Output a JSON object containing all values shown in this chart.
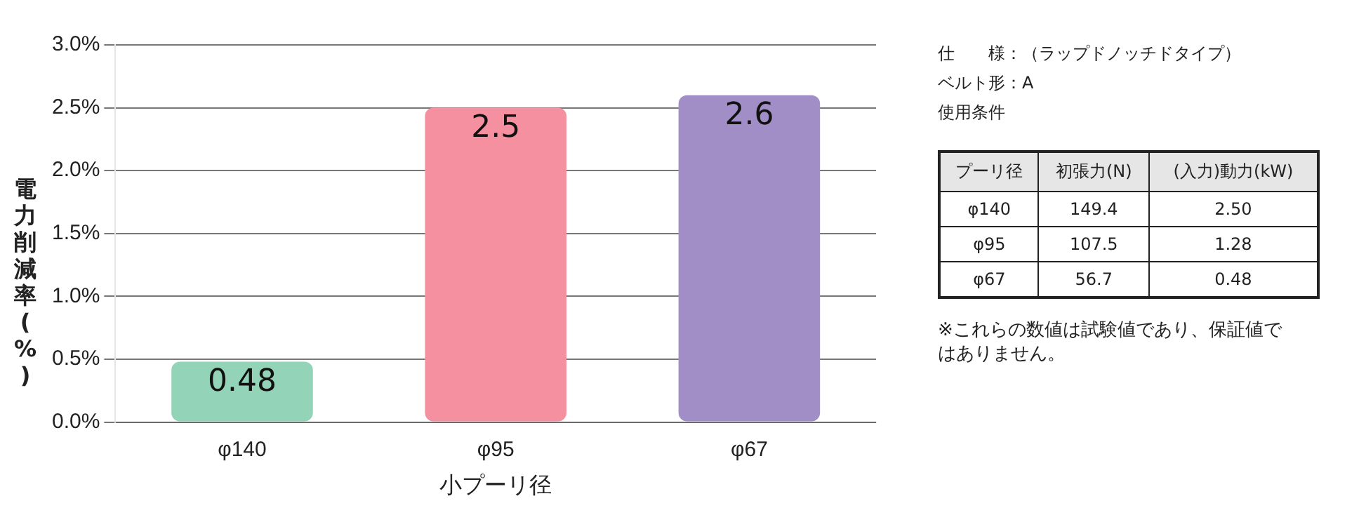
{
  "chart_data": [
    {
      "type": "bar",
      "categories": [
        "φ140",
        "φ95",
        "φ67"
      ],
      "values": [
        0.48,
        2.5,
        2.6
      ],
      "colors": [
        "#93d3b7",
        "#f4909f",
        "#a28ec6"
      ],
      "xlabel": "小プーリ径",
      "ylabel": "電力削減率(%)",
      "ylim": [
        0,
        3
      ],
      "yticks": [
        {
          "value": 0,
          "label": "0.0%"
        },
        {
          "value": 0.5,
          "label": "0.5%"
        },
        {
          "value": 1,
          "label": "1.0%"
        },
        {
          "value": 1.5,
          "label": "1.5%"
        },
        {
          "value": 2,
          "label": "2.0%"
        },
        {
          "value": 2.5,
          "label": "2.5%"
        },
        {
          "value": 3,
          "label": "3.0%"
        }
      ],
      "grid": "y",
      "data_labels": true
    },
    {
      "type": "other",
      "annotations": [
        "仕　　様：（ラップドノッチドタイプ）",
        "ベルト形：A",
        "使用条件",
        "149.4",
        "2.50",
        "107.5",
        "1.28",
        "56.7",
        "0.48",
        "※これらの数値は試験値であり、保証値ではありません。"
      ],
      "categories": [
        "プーリ径",
        "初張力(N)",
        "(入力)動力(kW)"
      ],
      "y_categories": [
        "φ140",
        "φ95",
        "φ67"
      ]
    }
  ]
}
